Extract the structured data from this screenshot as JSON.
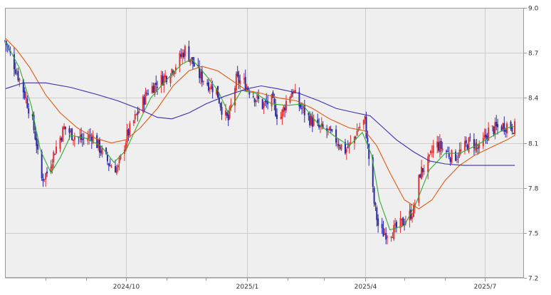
{
  "colors": {
    "plot_bg": "#efefef",
    "grid": "#cccccc",
    "axis": "#999999",
    "candle_up": "#e03030",
    "candle_down": "#2a2aa8",
    "ma_short": "#33aa33",
    "ma_mid": "#e05a10",
    "ma_long": "#3a30b0"
  },
  "chart_data": {
    "type": "candlestick",
    "title": "",
    "xlabel": "",
    "ylabel": "",
    "x_range": [
      "2024-07-01",
      "2025-07-31"
    ],
    "ylim": [
      7.2,
      9.0
    ],
    "y_ticks": [
      "7.2",
      "7.5",
      "7.8",
      "8.1",
      "8.4",
      "8.7",
      "9.0"
    ],
    "x_ticks": [
      {
        "date": "2024-10-01",
        "label": "2024/10"
      },
      {
        "date": "2025-01-01",
        "label": "2025/1"
      },
      {
        "date": "2025-04-01",
        "label": "2025/4"
      },
      {
        "date": "2025-07-01",
        "label": "2025/7"
      }
    ],
    "minor_x_ticks": [
      "2024-08-01",
      "2024-09-01",
      "2024-11-01",
      "2024-12-01",
      "2025-02-01",
      "2025-03-01",
      "2025-05-01",
      "2025-06-01"
    ],
    "grid": true,
    "price_path": [
      [
        "2024-07-01",
        8.78
      ],
      [
        "2024-07-08",
        8.62
      ],
      [
        "2024-07-15",
        8.45
      ],
      [
        "2024-07-21",
        8.28
      ],
      [
        "2024-07-25",
        8.1
      ],
      [
        "2024-07-28",
        7.85
      ],
      [
        "2024-08-02",
        7.9
      ],
      [
        "2024-08-08",
        8.05
      ],
      [
        "2024-08-15",
        8.2
      ],
      [
        "2024-08-22",
        8.15
      ],
      [
        "2024-08-29",
        8.12
      ],
      [
        "2024-09-05",
        8.15
      ],
      [
        "2024-09-12",
        8.05
      ],
      [
        "2024-09-19",
        7.95
      ],
      [
        "2024-09-25",
        7.93
      ],
      [
        "2024-10-02",
        8.15
      ],
      [
        "2024-10-10",
        8.3
      ],
      [
        "2024-10-18",
        8.45
      ],
      [
        "2024-10-25",
        8.5
      ],
      [
        "2024-11-01",
        8.55
      ],
      [
        "2024-11-08",
        8.62
      ],
      [
        "2024-11-15",
        8.72
      ],
      [
        "2024-11-20",
        8.65
      ],
      [
        "2024-11-26",
        8.55
      ],
      [
        "2024-12-02",
        8.5
      ],
      [
        "2024-12-09",
        8.45
      ],
      [
        "2024-12-14",
        8.3
      ],
      [
        "2024-12-18",
        8.25
      ],
      [
        "2024-12-24",
        8.52
      ],
      [
        "2024-12-30",
        8.5
      ],
      [
        "2025-01-06",
        8.42
      ],
      [
        "2025-01-13",
        8.35
      ],
      [
        "2025-01-20",
        8.38
      ],
      [
        "2025-01-26",
        8.25
      ],
      [
        "2025-02-01",
        8.4
      ],
      [
        "2025-02-05",
        8.45
      ],
      [
        "2025-02-10",
        8.35
      ],
      [
        "2025-02-17",
        8.27
      ],
      [
        "2025-02-24",
        8.2
      ],
      [
        "2025-03-03",
        8.18
      ],
      [
        "2025-03-10",
        8.12
      ],
      [
        "2025-03-17",
        8.05
      ],
      [
        "2025-03-22",
        8.1
      ],
      [
        "2025-03-27",
        8.2
      ],
      [
        "2025-04-01",
        8.25
      ],
      [
        "2025-04-04",
        8.0
      ],
      [
        "2025-04-08",
        7.7
      ],
      [
        "2025-04-12",
        7.5
      ],
      [
        "2025-04-17",
        7.5
      ],
      [
        "2025-04-24",
        7.52
      ],
      [
        "2025-05-01",
        7.58
      ],
      [
        "2025-05-08",
        7.65
      ],
      [
        "2025-05-13",
        7.9
      ],
      [
        "2025-05-20",
        7.98
      ],
      [
        "2025-05-24",
        8.1
      ],
      [
        "2025-06-01",
        8.05
      ],
      [
        "2025-06-07",
        8.0
      ],
      [
        "2025-06-14",
        8.05
      ],
      [
        "2025-06-21",
        8.12
      ],
      [
        "2025-06-27",
        8.05
      ],
      [
        "2025-07-04",
        8.18
      ],
      [
        "2025-07-11",
        8.2
      ],
      [
        "2025-07-18",
        8.22
      ],
      [
        "2025-07-24",
        8.2
      ]
    ],
    "series": [
      {
        "key": "ma_short",
        "color": "#33aa33",
        "values": [
          [
            "2024-07-01",
            8.78
          ],
          [
            "2024-07-12",
            8.6
          ],
          [
            "2024-07-21",
            8.35
          ],
          [
            "2024-07-28",
            8.05
          ],
          [
            "2024-08-05",
            7.9
          ],
          [
            "2024-08-12",
            8.0
          ],
          [
            "2024-08-20",
            8.15
          ],
          [
            "2024-09-01",
            8.13
          ],
          [
            "2024-09-12",
            8.08
          ],
          [
            "2024-09-22",
            7.97
          ],
          [
            "2024-10-01",
            8.05
          ],
          [
            "2024-10-10",
            8.22
          ],
          [
            "2024-10-20",
            8.4
          ],
          [
            "2024-11-01",
            8.52
          ],
          [
            "2024-11-12",
            8.62
          ],
          [
            "2024-11-20",
            8.66
          ],
          [
            "2024-12-01",
            8.55
          ],
          [
            "2024-12-10",
            8.45
          ],
          [
            "2024-12-18",
            8.3
          ],
          [
            "2024-12-28",
            8.45
          ],
          [
            "2025-01-08",
            8.43
          ],
          [
            "2025-01-20",
            8.36
          ],
          [
            "2025-02-01",
            8.35
          ],
          [
            "2025-02-12",
            8.36
          ],
          [
            "2025-02-24",
            8.23
          ],
          [
            "2025-03-08",
            8.15
          ],
          [
            "2025-03-20",
            8.08
          ],
          [
            "2025-03-30",
            8.17
          ],
          [
            "2025-04-06",
            8.02
          ],
          [
            "2025-04-12",
            7.72
          ],
          [
            "2025-04-20",
            7.52
          ],
          [
            "2025-05-01",
            7.55
          ],
          [
            "2025-05-10",
            7.7
          ],
          [
            "2025-05-20",
            7.92
          ],
          [
            "2025-06-01",
            8.03
          ],
          [
            "2025-06-12",
            8.03
          ],
          [
            "2025-06-24",
            8.08
          ],
          [
            "2025-07-06",
            8.14
          ],
          [
            "2025-07-18",
            8.2
          ],
          [
            "2025-07-24",
            8.21
          ]
        ]
      },
      {
        "key": "ma_mid",
        "color": "#e05a10",
        "values": [
          [
            "2024-07-01",
            8.8
          ],
          [
            "2024-07-10",
            8.72
          ],
          [
            "2024-07-20",
            8.6
          ],
          [
            "2024-08-01",
            8.42
          ],
          [
            "2024-08-12",
            8.3
          ],
          [
            "2024-08-25",
            8.2
          ],
          [
            "2024-09-08",
            8.13
          ],
          [
            "2024-09-20",
            8.1
          ],
          [
            "2024-10-01",
            8.12
          ],
          [
            "2024-10-12",
            8.2
          ],
          [
            "2024-10-25",
            8.33
          ],
          [
            "2024-11-06",
            8.48
          ],
          [
            "2024-11-18",
            8.58
          ],
          [
            "2024-11-28",
            8.61
          ],
          [
            "2024-12-10",
            8.58
          ],
          [
            "2024-12-20",
            8.52
          ],
          [
            "2025-01-01",
            8.45
          ],
          [
            "2025-01-12",
            8.43
          ],
          [
            "2025-01-25",
            8.4
          ],
          [
            "2025-02-08",
            8.38
          ],
          [
            "2025-02-20",
            8.33
          ],
          [
            "2025-03-05",
            8.26
          ],
          [
            "2025-03-20",
            8.2
          ],
          [
            "2025-04-01",
            8.18
          ],
          [
            "2025-04-10",
            8.08
          ],
          [
            "2025-04-20",
            7.9
          ],
          [
            "2025-05-01",
            7.72
          ],
          [
            "2025-05-12",
            7.66
          ],
          [
            "2025-05-22",
            7.72
          ],
          [
            "2025-06-01",
            7.85
          ],
          [
            "2025-06-12",
            7.95
          ],
          [
            "2025-06-24",
            8.02
          ],
          [
            "2025-07-06",
            8.07
          ],
          [
            "2025-07-18",
            8.12
          ],
          [
            "2025-07-24",
            8.15
          ]
        ]
      },
      {
        "key": "ma_long",
        "color": "#3a30b0",
        "values": [
          [
            "2024-07-01",
            8.46
          ],
          [
            "2024-07-15",
            8.5
          ],
          [
            "2024-08-01",
            8.5
          ],
          [
            "2024-08-20",
            8.47
          ],
          [
            "2024-09-10",
            8.42
          ],
          [
            "2024-09-25",
            8.38
          ],
          [
            "2024-10-10",
            8.33
          ],
          [
            "2024-10-25",
            8.27
          ],
          [
            "2024-11-05",
            8.26
          ],
          [
            "2024-11-18",
            8.3
          ],
          [
            "2024-12-01",
            8.36
          ],
          [
            "2024-12-15",
            8.41
          ],
          [
            "2025-01-01",
            8.46
          ],
          [
            "2025-01-12",
            8.48
          ],
          [
            "2025-01-25",
            8.46
          ],
          [
            "2025-02-10",
            8.43
          ],
          [
            "2025-02-25",
            8.38
          ],
          [
            "2025-03-10",
            8.33
          ],
          [
            "2025-03-25",
            8.3
          ],
          [
            "2025-04-05",
            8.28
          ],
          [
            "2025-04-15",
            8.2
          ],
          [
            "2025-04-25",
            8.12
          ],
          [
            "2025-05-08",
            8.04
          ],
          [
            "2025-05-20",
            7.98
          ],
          [
            "2025-06-01",
            7.96
          ],
          [
            "2025-06-15",
            7.95
          ],
          [
            "2025-07-01",
            7.95
          ],
          [
            "2025-07-24",
            7.95
          ]
        ]
      }
    ]
  }
}
